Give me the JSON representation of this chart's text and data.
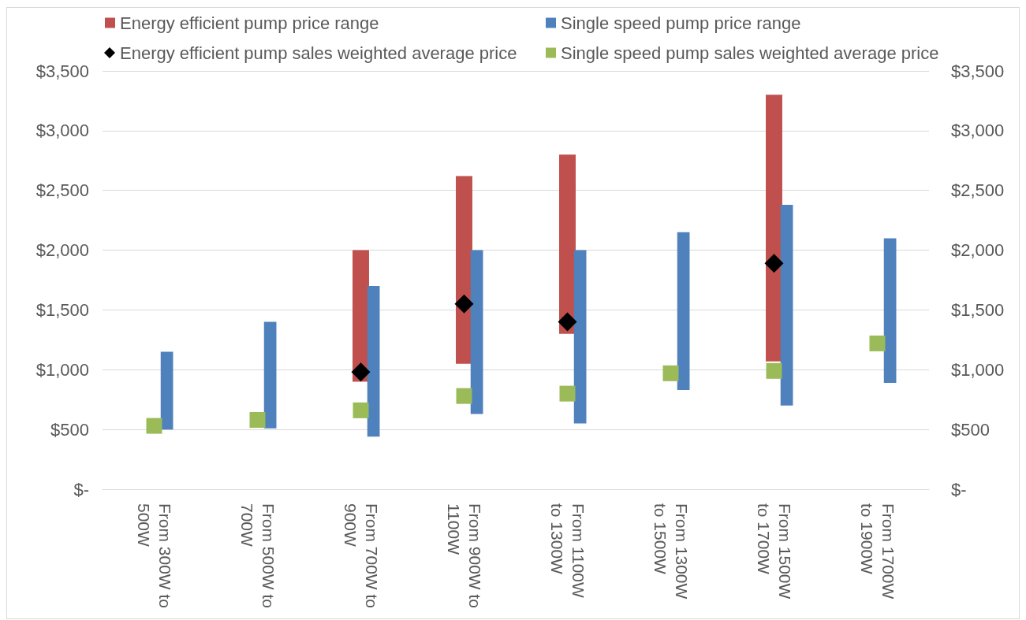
{
  "chart_data": {
    "type": "bar",
    "categories": [
      "From 300W to 500W",
      "From 500W to 700W",
      "From 700W to 900W",
      "From 900W to 1100W",
      "From 1100W to 1300W",
      "From 1300W to 1500W",
      "From 1500W to 1700W",
      "From 1700W to 1900W"
    ],
    "series": [
      {
        "name": "Energy efficient pump price range",
        "color": "#c0504d",
        "base": [
          null,
          null,
          900,
          1050,
          1300,
          null,
          1070,
          null
        ],
        "values": [
          null,
          null,
          1100,
          1570,
          1500,
          null,
          2230,
          null
        ]
      },
      {
        "name": "Single speed pump price range",
        "color": "#4f81bd",
        "base": [
          500,
          510,
          440,
          630,
          550,
          830,
          700,
          890
        ],
        "values": [
          650,
          890,
          1260,
          1370,
          1450,
          1320,
          1680,
          1210
        ]
      },
      {
        "name": "Energy efficient pump sales weighted average price",
        "type": "scatter",
        "marker": "diamond",
        "color": "#000000",
        "x": [
          "From 700W to 900W",
          "From 900W to 1100W",
          "From 1100W to 1300W",
          "From 1500W to 1700W"
        ],
        "values": [
          980,
          1550,
          1400,
          1890
        ]
      },
      {
        "name": "Single speed pump sales weighted average price",
        "type": "scatter",
        "marker": "square",
        "color": "#9bbb59",
        "x": [
          "From 300W to 500W",
          "From 500W to 700W",
          "From 700W to 900W",
          "From 900W to 1100W",
          "From 1100W to 1300W",
          "From 1300W to 1500W",
          "From 1500W to 1700W",
          "From 1700W to 1900W"
        ],
        "values": [
          530,
          580,
          660,
          780,
          800,
          970,
          990,
          1220
        ]
      }
    ],
    "ylim": [
      0,
      3500
    ],
    "yticks": [
      {
        "value": 0,
        "label": "$-"
      },
      {
        "value": 500,
        "label": "$500"
      },
      {
        "value": 1000,
        "label": "$1,000"
      },
      {
        "value": 1500,
        "label": "$1,500"
      },
      {
        "value": 2000,
        "label": "$2,000"
      },
      {
        "value": 2500,
        "label": "$2,500"
      },
      {
        "value": 3000,
        "label": "$3,000"
      },
      {
        "value": 3500,
        "label": "$3,500"
      }
    ],
    "y2lim": [
      0,
      3500
    ],
    "y2ticks": [
      {
        "value": 0,
        "label": "$-"
      },
      {
        "value": 500,
        "label": "$500"
      },
      {
        "value": 1000,
        "label": "$1,000"
      },
      {
        "value": 1500,
        "label": "$1,500"
      },
      {
        "value": 2000,
        "label": "$2,000"
      },
      {
        "value": 2500,
        "label": "$2,500"
      },
      {
        "value": 3000,
        "label": "$3,000"
      },
      {
        "value": 3500,
        "label": "$3,500"
      }
    ],
    "grid": "y",
    "legend": "top"
  }
}
